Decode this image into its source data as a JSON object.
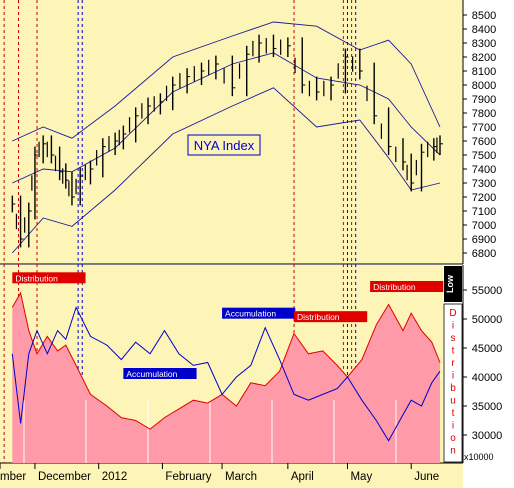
{
  "chart_data": [
    {
      "type": "line",
      "subtype": "ohlc-bars-with-bollinger-bands",
      "title": "NYA Index",
      "yticks": [
        6800,
        6900,
        7000,
        7100,
        7200,
        7300,
        7400,
        7500,
        7600,
        7700,
        7800,
        7900,
        8000,
        8100,
        8200,
        8300,
        8400,
        8500
      ],
      "ylim": [
        6730,
        8540
      ],
      "grid": false,
      "x_months": [
        "November",
        "December",
        "2012",
        "February",
        "March",
        "April",
        "May",
        "June"
      ],
      "price_series": {
        "name": "NYA",
        "points": [
          {
            "d": "2011-11-20",
            "v": 7150
          },
          {
            "d": "2011-11-24",
            "v": 6900
          },
          {
            "d": "2011-11-28",
            "v": 7100
          },
          {
            "d": "2011-12-01",
            "v": 7500
          },
          {
            "d": "2011-12-05",
            "v": 7580
          },
          {
            "d": "2011-12-09",
            "v": 7500
          },
          {
            "d": "2011-12-13",
            "v": 7380
          },
          {
            "d": "2011-12-16",
            "v": 7320
          },
          {
            "d": "2011-12-19",
            "v": 7200
          },
          {
            "d": "2011-12-23",
            "v": 7350
          },
          {
            "d": "2011-12-28",
            "v": 7400
          },
          {
            "d": "2012-01-03",
            "v": 7560
          },
          {
            "d": "2012-01-09",
            "v": 7600
          },
          {
            "d": "2012-01-13",
            "v": 7650
          },
          {
            "d": "2012-01-19",
            "v": 7780
          },
          {
            "d": "2012-01-25",
            "v": 7850
          },
          {
            "d": "2012-01-31",
            "v": 7880
          },
          {
            "d": "2012-02-06",
            "v": 8000
          },
          {
            "d": "2012-02-13",
            "v": 8060
          },
          {
            "d": "2012-02-20",
            "v": 8100
          },
          {
            "d": "2012-02-27",
            "v": 8150
          },
          {
            "d": "2012-03-06",
            "v": 7980
          },
          {
            "d": "2012-03-13",
            "v": 8220
          },
          {
            "d": "2012-03-19",
            "v": 8300
          },
          {
            "d": "2012-03-26",
            "v": 8260
          },
          {
            "d": "2012-04-02",
            "v": 8280
          },
          {
            "d": "2012-04-09",
            "v": 8000
          },
          {
            "d": "2012-04-16",
            "v": 7950
          },
          {
            "d": "2012-04-23",
            "v": 8000
          },
          {
            "d": "2012-04-30",
            "v": 8200
          },
          {
            "d": "2012-05-07",
            "v": 8100
          },
          {
            "d": "2012-05-14",
            "v": 7780
          },
          {
            "d": "2012-05-21",
            "v": 7560
          },
          {
            "d": "2012-05-28",
            "v": 7450
          },
          {
            "d": "2012-06-01",
            "v": 7300
          },
          {
            "d": "2012-06-06",
            "v": 7520
          },
          {
            "d": "2012-06-12",
            "v": 7560
          },
          {
            "d": "2012-06-15",
            "v": 7580
          }
        ]
      },
      "upper_band": [
        {
          "d": "2011-11-20",
          "v": 7600
        },
        {
          "d": "2011-12-05",
          "v": 7700
        },
        {
          "d": "2011-12-19",
          "v": 7620
        },
        {
          "d": "2012-01-09",
          "v": 7850
        },
        {
          "d": "2012-02-06",
          "v": 8200
        },
        {
          "d": "2012-03-06",
          "v": 8350
        },
        {
          "d": "2012-03-26",
          "v": 8450
        },
        {
          "d": "2012-04-16",
          "v": 8420
        },
        {
          "d": "2012-05-07",
          "v": 8250
        },
        {
          "d": "2012-05-21",
          "v": 8320
        },
        {
          "d": "2012-06-01",
          "v": 8150
        },
        {
          "d": "2012-06-15",
          "v": 7700
        }
      ],
      "middle_band": [
        {
          "d": "2011-11-20",
          "v": 7300
        },
        {
          "d": "2011-12-05",
          "v": 7400
        },
        {
          "d": "2011-12-19",
          "v": 7380
        },
        {
          "d": "2012-01-09",
          "v": 7550
        },
        {
          "d": "2012-02-06",
          "v": 7950
        },
        {
          "d": "2012-03-06",
          "v": 8150
        },
        {
          "d": "2012-03-26",
          "v": 8230
        },
        {
          "d": "2012-04-16",
          "v": 8050
        },
        {
          "d": "2012-05-07",
          "v": 8000
        },
        {
          "d": "2012-05-21",
          "v": 7900
        },
        {
          "d": "2012-06-01",
          "v": 7700
        },
        {
          "d": "2012-06-15",
          "v": 7500
        }
      ],
      "lower_band": [
        {
          "d": "2011-11-20",
          "v": 6800
        },
        {
          "d": "2011-12-05",
          "v": 7050
        },
        {
          "d": "2011-12-19",
          "v": 6990
        },
        {
          "d": "2012-01-09",
          "v": 7250
        },
        {
          "d": "2012-02-06",
          "v": 7650
        },
        {
          "d": "2012-03-06",
          "v": 7850
        },
        {
          "d": "2012-03-26",
          "v": 7980
        },
        {
          "d": "2012-04-16",
          "v": 7700
        },
        {
          "d": "2012-05-07",
          "v": 7750
        },
        {
          "d": "2012-05-21",
          "v": 7480
        },
        {
          "d": "2012-06-01",
          "v": 7250
        },
        {
          "d": "2012-06-15",
          "v": 7300
        }
      ]
    },
    {
      "type": "area",
      "yticks": [
        30000,
        35000,
        40000,
        45000,
        50000,
        55000
      ],
      "ylim": [
        26000,
        58500
      ],
      "unit_label": "x10000",
      "side_labels": {
        "top": "Low",
        "right": "Distribution"
      },
      "annotations": [
        {
          "text": "Distribution",
          "d": "2011-11-20",
          "v": 56500,
          "color": "#e00000"
        },
        {
          "text": "Accumulation",
          "d": "2012-01-13",
          "v": 40000,
          "color": "#0000cc"
        },
        {
          "text": "Accumulation",
          "d": "2012-03-01",
          "v": 50400,
          "color": "#0000cc"
        },
        {
          "text": "Distribution",
          "d": "2012-04-05",
          "v": 49800,
          "color": "#e00000"
        },
        {
          "text": "Distribution",
          "d": "2012-05-12",
          "v": 55000,
          "color": "#e00000"
        }
      ],
      "series": [
        {
          "name": "Distribution",
          "color": "#e00000",
          "points": [
            {
              "d": "2011-11-20",
              "v": 52000
            },
            {
              "d": "2011-11-24",
              "v": 54500
            },
            {
              "d": "2011-11-28",
              "v": 48000
            },
            {
              "d": "2011-12-02",
              "v": 44000
            },
            {
              "d": "2011-12-07",
              "v": 47000
            },
            {
              "d": "2011-12-12",
              "v": 44500
            },
            {
              "d": "2011-12-16",
              "v": 45500
            },
            {
              "d": "2011-12-21",
              "v": 42000
            },
            {
              "d": "2011-12-28",
              "v": 37000
            },
            {
              "d": "2012-01-05",
              "v": 35000
            },
            {
              "d": "2012-01-12",
              "v": 33000
            },
            {
              "d": "2012-01-19",
              "v": 32500
            },
            {
              "d": "2012-01-26",
              "v": 31000
            },
            {
              "d": "2012-02-02",
              "v": 33000
            },
            {
              "d": "2012-02-09",
              "v": 34500
            },
            {
              "d": "2012-02-16",
              "v": 36000
            },
            {
              "d": "2012-02-23",
              "v": 35500
            },
            {
              "d": "2012-03-01",
              "v": 37000
            },
            {
              "d": "2012-03-08",
              "v": 35000
            },
            {
              "d": "2012-03-15",
              "v": 39000
            },
            {
              "d": "2012-03-22",
              "v": 38500
            },
            {
              "d": "2012-03-29",
              "v": 41000
            },
            {
              "d": "2012-04-05",
              "v": 47500
            },
            {
              "d": "2012-04-12",
              "v": 44000
            },
            {
              "d": "2012-04-19",
              "v": 44500
            },
            {
              "d": "2012-04-26",
              "v": 42000
            },
            {
              "d": "2012-05-01",
              "v": 40000
            },
            {
              "d": "2012-05-08",
              "v": 43000
            },
            {
              "d": "2012-05-15",
              "v": 49000
            },
            {
              "d": "2012-05-21",
              "v": 52500
            },
            {
              "d": "2012-05-28",
              "v": 48000
            },
            {
              "d": "2012-06-01",
              "v": 51000
            },
            {
              "d": "2012-06-06",
              "v": 48000
            },
            {
              "d": "2012-06-11",
              "v": 46000
            },
            {
              "d": "2012-06-15",
              "v": 42500
            }
          ]
        },
        {
          "name": "Accumulation",
          "color": "#0000cc",
          "points": [
            {
              "d": "2011-11-20",
              "v": 44000
            },
            {
              "d": "2011-11-24",
              "v": 32000
            },
            {
              "d": "2011-11-28",
              "v": 44000
            },
            {
              "d": "2011-12-02",
              "v": 48000
            },
            {
              "d": "2011-12-07",
              "v": 44000
            },
            {
              "d": "2011-12-12",
              "v": 48000
            },
            {
              "d": "2011-12-16",
              "v": 46500
            },
            {
              "d": "2011-12-21",
              "v": 52000
            },
            {
              "d": "2011-12-28",
              "v": 47000
            },
            {
              "d": "2012-01-05",
              "v": 45500
            },
            {
              "d": "2012-01-12",
              "v": 43000
            },
            {
              "d": "2012-01-19",
              "v": 46000
            },
            {
              "d": "2012-01-26",
              "v": 44000
            },
            {
              "d": "2012-02-02",
              "v": 48000
            },
            {
              "d": "2012-02-09",
              "v": 44000
            },
            {
              "d": "2012-02-16",
              "v": 42000
            },
            {
              "d": "2012-02-23",
              "v": 42500
            },
            {
              "d": "2012-03-01",
              "v": 37000
            },
            {
              "d": "2012-03-08",
              "v": 40000
            },
            {
              "d": "2012-03-15",
              "v": 42000
            },
            {
              "d": "2012-03-22",
              "v": 48500
            },
            {
              "d": "2012-03-29",
              "v": 43000
            },
            {
              "d": "2012-04-05",
              "v": 37000
            },
            {
              "d": "2012-04-12",
              "v": 36000
            },
            {
              "d": "2012-04-19",
              "v": 37000
            },
            {
              "d": "2012-04-26",
              "v": 38000
            },
            {
              "d": "2012-05-01",
              "v": 40000
            },
            {
              "d": "2012-05-08",
              "v": 36000
            },
            {
              "d": "2012-05-15",
              "v": 32500
            },
            {
              "d": "2012-05-21",
              "v": 29000
            },
            {
              "d": "2012-05-28",
              "v": 33500
            },
            {
              "d": "2012-06-01",
              "v": 36000
            },
            {
              "d": "2012-06-06",
              "v": 35000
            },
            {
              "d": "2012-06-11",
              "v": 39000
            },
            {
              "d": "2012-06-15",
              "v": 41000
            }
          ]
        }
      ]
    }
  ],
  "x_axis": {
    "labels": [
      {
        "text": "mber",
        "d": "2011-11-14"
      },
      {
        "text": "December",
        "d": "2011-12-01"
      },
      {
        "text": "2012",
        "d": "2012-01-01"
      },
      {
        "text": "February",
        "d": "2012-02-01"
      },
      {
        "text": "March",
        "d": "2012-03-01"
      },
      {
        "text": "April",
        "d": "2012-04-02"
      },
      {
        "text": "May",
        "d": "2012-05-01"
      },
      {
        "text": "June",
        "d": "2012-06-01"
      }
    ]
  },
  "vlines": [
    {
      "d": "2011-11-16",
      "color": "#cc0000"
    },
    {
      "d": "2011-11-23",
      "color": "#cc0000"
    },
    {
      "d": "2011-12-02",
      "color": "#cc0000"
    },
    {
      "d": "2011-12-22",
      "color": "#0000cc"
    },
    {
      "d": "2011-12-24",
      "color": "#0000cc"
    },
    {
      "d": "2012-04-05",
      "color": "#cc0000"
    },
    {
      "d": "2012-04-29",
      "color": "#cc0000"
    },
    {
      "d": "2012-05-01",
      "color": "#0000cc"
    },
    {
      "d": "2012-05-03",
      "color": "#cc0000"
    },
    {
      "d": "2012-05-05",
      "color": "#0000cc"
    }
  ],
  "colors": {
    "background": "#fdf5b8",
    "price": "#000000",
    "bands": "#1a1a99",
    "dist_fill": "#ff9aa8",
    "dist_line": "#e00000",
    "acc_line": "#0000cc"
  }
}
